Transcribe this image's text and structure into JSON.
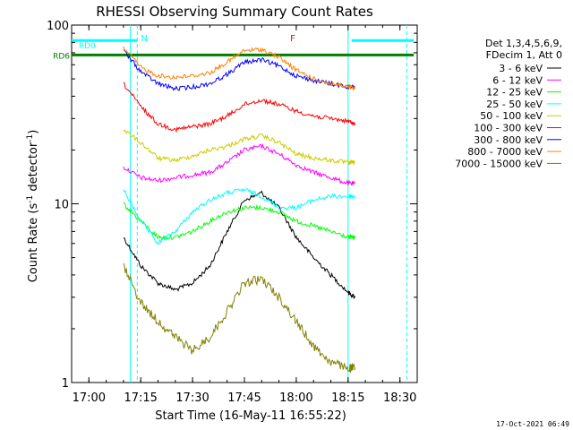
{
  "chart_data": {
    "type": "line",
    "title": "RHESSI Observing Summary Count Rates",
    "xlabel": "Start Time (16-May-11 16:55:22)",
    "ylabel": "Count Rate (s",
    "ylabel_sup": "-1",
    "ylabel_tail": " detector",
    "ylabel_close": ")",
    "x_unit": "minutes",
    "xlim": [
      "16:55",
      "18:35"
    ],
    "ylim": [
      1,
      100
    ],
    "yscale": "log",
    "x_ticks": [
      "17:00",
      "17:15",
      "17:30",
      "17:45",
      "18:00",
      "18:15",
      "18:30"
    ],
    "y_ticks": [
      "1",
      "10",
      "100"
    ],
    "legend_header": [
      "Det 1,3,4,5,6,9,",
      "FDecim 1, Att 0"
    ],
    "legend_position": "right",
    "footer_date": "17-Oct-2021 06:49",
    "annotations": [
      {
        "label": "N",
        "x": "17:16",
        "color": "#00ffff"
      },
      {
        "label": "F",
        "x": "17:59",
        "color": "#ff0000"
      }
    ],
    "markers": [
      {
        "label": "RD0",
        "x": [
          "16:55",
          "17:14"
        ],
        "y": 82,
        "color": "#00ffff"
      },
      {
        "label": "RD6",
        "x": [
          "16:55",
          "18:34"
        ],
        "y": 68,
        "color": "#008000"
      },
      {
        "label": "",
        "x": [
          "18:16",
          "18:34"
        ],
        "y": 82,
        "color": "#00ffff"
      }
    ],
    "vlines": [
      {
        "x": "17:12",
        "style": "solid",
        "color": "#00ffff"
      },
      {
        "x": "17:14",
        "style": "dashed",
        "color": "#00ffff"
      },
      {
        "x": "18:15",
        "style": "solid",
        "color": "#00ffff"
      },
      {
        "x": "18:32",
        "style": "dashed",
        "color": "#00ffff"
      }
    ],
    "x": [
      "17:10",
      "17:15",
      "17:20",
      "17:25",
      "17:30",
      "17:35",
      "17:40",
      "17:45",
      "17:50",
      "17:55",
      "18:00",
      "18:05",
      "18:10",
      "18:15",
      "18:17"
    ],
    "series": [
      {
        "name": "3 - 6 keV",
        "color": "#000000",
        "values": [
          6.5,
          4.5,
          3.6,
          3.3,
          3.6,
          4.5,
          7.0,
          10.5,
          11.5,
          9.5,
          6.5,
          5.0,
          4.0,
          3.2,
          3.0
        ]
      },
      {
        "name": "6 - 12 keV",
        "color": "#ff00ff",
        "values": [
          16,
          14,
          13.5,
          14,
          14.5,
          15,
          17,
          20,
          21,
          19,
          16.5,
          15,
          14,
          13,
          13
        ]
      },
      {
        "name": "12 - 25 keV",
        "color": "#00ff00",
        "values": [
          10,
          8.0,
          6.5,
          6.5,
          7.0,
          8.0,
          9.0,
          9.5,
          9.5,
          9.0,
          8.0,
          7.5,
          7.0,
          6.5,
          6.5
        ]
      },
      {
        "name": "25 - 50 keV",
        "color": "#00ffff",
        "values": [
          12,
          8.0,
          6.0,
          7.0,
          9.0,
          10.5,
          11.5,
          12,
          11,
          9.5,
          9.5,
          10.5,
          11,
          11,
          11
        ]
      },
      {
        "name": "50 - 100 keV",
        "color": "#cccc00",
        "values": [
          26,
          22,
          18,
          17.5,
          18.5,
          20,
          21,
          23,
          24,
          22,
          19,
          18,
          17.5,
          17,
          17
        ]
      },
      {
        "name": "100 - 300 keV",
        "color": "#ff0000",
        "values": [
          47,
          35,
          28,
          26,
          27,
          28,
          31,
          36,
          38,
          36,
          33,
          31,
          30,
          29,
          28
        ]
      },
      {
        "name": "300 - 800 keV",
        "color": "#0000ff",
        "values": [
          72,
          55,
          47,
          44,
          45,
          47,
          53,
          62,
          64,
          59,
          52,
          49,
          47,
          45,
          45
        ]
      },
      {
        "name": "800 - 7000 keV",
        "color": "#ff8000",
        "values": [
          75,
          58,
          52,
          51,
          52,
          54,
          62,
          72,
          73,
          66,
          56,
          50,
          47,
          45,
          44
        ]
      },
      {
        "name": "7000 - 15000 keV",
        "color": "#808000",
        "values": [
          4.5,
          2.8,
          2.2,
          1.8,
          1.5,
          1.8,
          2.5,
          3.6,
          3.8,
          3.0,
          2.2,
          1.6,
          1.3,
          1.2,
          1.2
        ]
      }
    ]
  }
}
